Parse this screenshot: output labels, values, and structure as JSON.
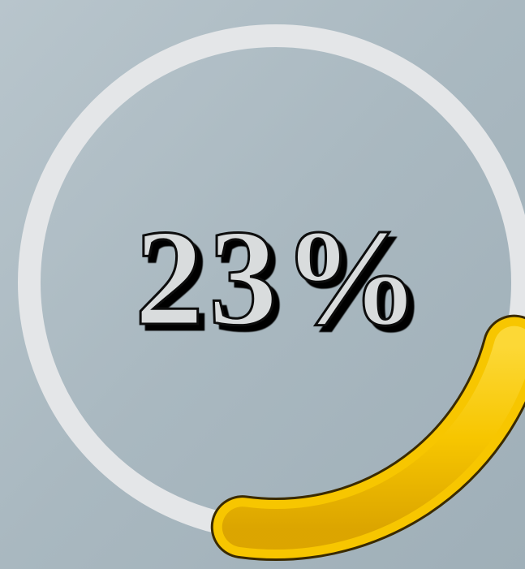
{
  "chart_data": {
    "type": "gauge",
    "values": [
      23
    ],
    "value_labels": [
      "23%"
    ],
    "ylim": [
      0,
      100
    ],
    "color": "#f7c600",
    "track_color": "#e4e6e8"
  }
}
